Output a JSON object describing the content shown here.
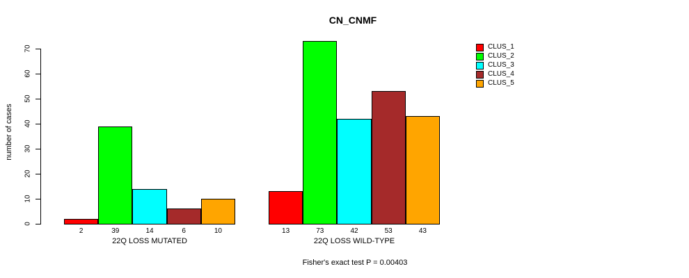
{
  "chart_data": {
    "type": "bar",
    "title": "CN_CNMF",
    "xlabel": "",
    "ylabel": "number of cases",
    "groups": [
      "22Q LOSS MUTATED",
      "22Q LOSS WILD-TYPE"
    ],
    "series": [
      {
        "name": "CLUS_1",
        "color": "#FF0000",
        "values": [
          2,
          13
        ]
      },
      {
        "name": "CLUS_2",
        "color": "#00FF00",
        "values": [
          39,
          73
        ]
      },
      {
        "name": "CLUS_3",
        "color": "#00FFFF",
        "values": [
          14,
          42
        ]
      },
      {
        "name": "CLUS_4",
        "color": "#A52A2A",
        "values": [
          6,
          53
        ]
      },
      {
        "name": "CLUS_5",
        "color": "#FFA500",
        "values": [
          10,
          43
        ]
      }
    ],
    "bar_value_labels": [
      [
        "2",
        "39",
        "14",
        "6",
        "10"
      ],
      [
        "13",
        "73",
        "42",
        "53",
        "43"
      ]
    ],
    "yticks": [
      0,
      10,
      20,
      30,
      40,
      50,
      60,
      70
    ],
    "ylim": [
      0,
      73
    ],
    "grid": false,
    "legend_position": "right",
    "annotation": "Fisher's exact test P = 0.00403"
  }
}
